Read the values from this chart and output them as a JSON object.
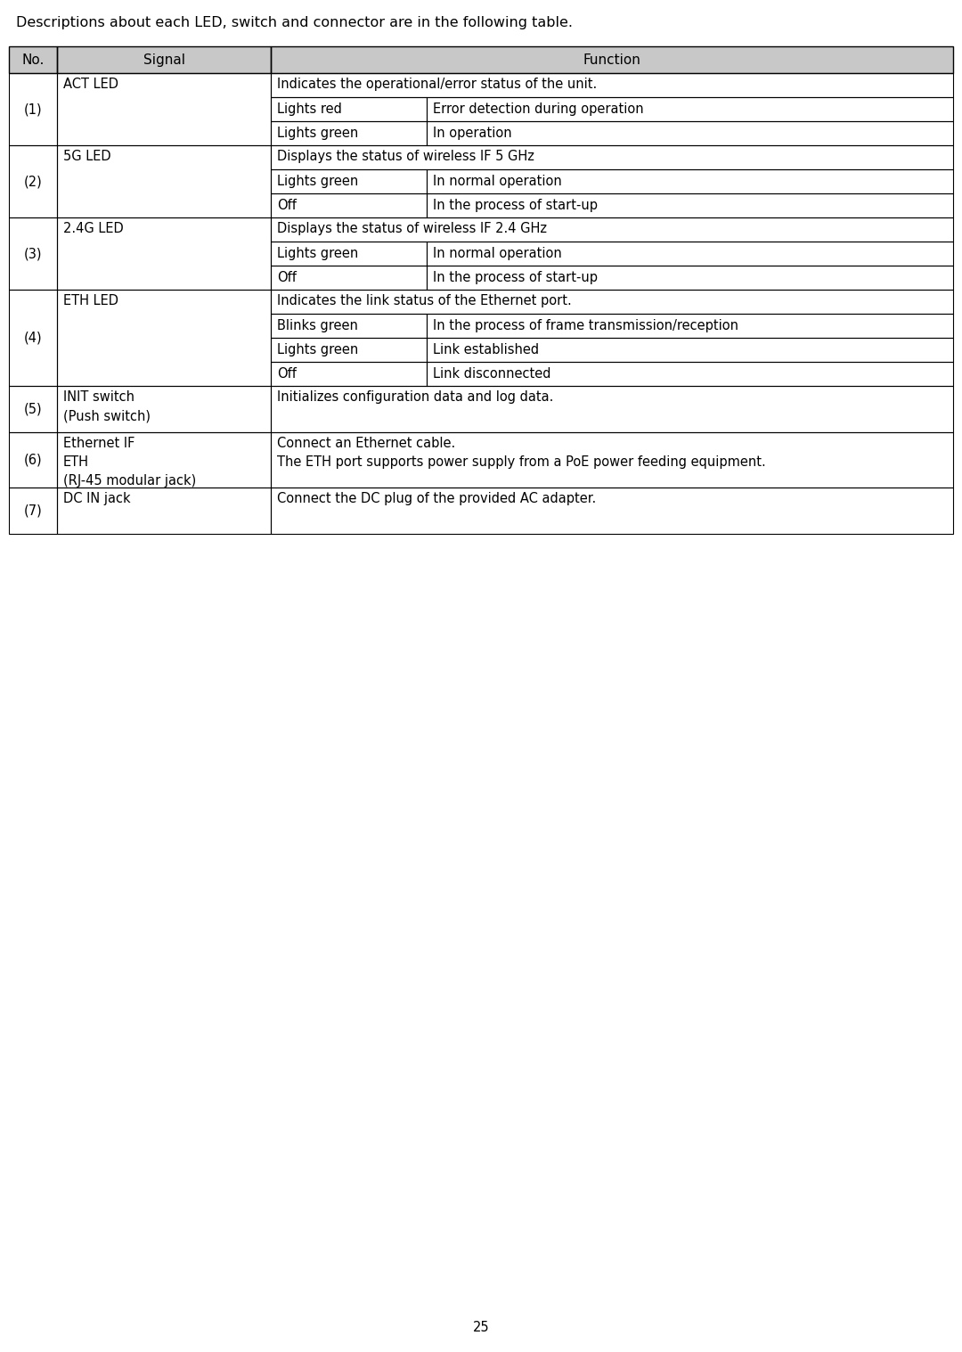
{
  "title_text": "Descriptions about each LED, switch and connector are in the following table.",
  "page_number": "25",
  "header": [
    "No.",
    "Signal",
    "Function"
  ],
  "header_bg": "#c8c8c8",
  "border_color": "#000000",
  "text_color": "#000000",
  "font_size": 10.5,
  "header_font_size": 11.0,
  "title_font_size": 11.5,
  "rows": [
    {
      "no": "(1)",
      "signal": "ACT LED",
      "sub_rows": [
        {
          "col2": "Indicates the operational/error status of the unit.",
          "span": true
        },
        {
          "col2": "Lights red",
          "col3": "Error detection during operation"
        },
        {
          "col2": "Lights green",
          "col3": "In operation"
        }
      ]
    },
    {
      "no": "(2)",
      "signal": "5G LED",
      "sub_rows": [
        {
          "col2": "Displays the status of wireless IF 5 GHz",
          "span": true
        },
        {
          "col2": "Lights green",
          "col3": "In normal operation"
        },
        {
          "col2": "Off",
          "col3": "In the process of start-up"
        }
      ]
    },
    {
      "no": "(3)",
      "signal": "2.4G LED",
      "sub_rows": [
        {
          "col2": "Displays the status of wireless IF 2.4 GHz",
          "span": true
        },
        {
          "col2": "Lights green",
          "col3": "In normal operation"
        },
        {
          "col2": "Off",
          "col3": "In the process of start-up"
        }
      ]
    },
    {
      "no": "(4)",
      "signal": "ETH LED",
      "sub_rows": [
        {
          "col2": "Indicates the link status of the Ethernet port.",
          "span": true
        },
        {
          "col2": "Blinks green",
          "col3": "In the process of frame transmission/reception"
        },
        {
          "col2": "Lights green",
          "col3": "Link established"
        },
        {
          "col2": "Off",
          "col3": "Link disconnected"
        }
      ]
    },
    {
      "no": "(5)",
      "signal": "INIT switch\n(Push switch)",
      "sub_rows": [
        {
          "col2": "Initializes configuration data and log data.",
          "span": true,
          "multi": true
        }
      ]
    },
    {
      "no": "(6)",
      "signal": "Ethernet IF\nETH\n(RJ-45 modular jack)",
      "sub_rows": [
        {
          "col2": "Connect an Ethernet cable.\nThe ETH port supports power supply from a PoE power feeding equipment.",
          "span": true,
          "multi": true
        }
      ]
    },
    {
      "no": "(7)",
      "signal": "DC IN jack",
      "sub_rows": [
        {
          "col2": "Connect the DC plug of the provided AC adapter.",
          "span": true,
          "multi": true
        }
      ]
    }
  ]
}
